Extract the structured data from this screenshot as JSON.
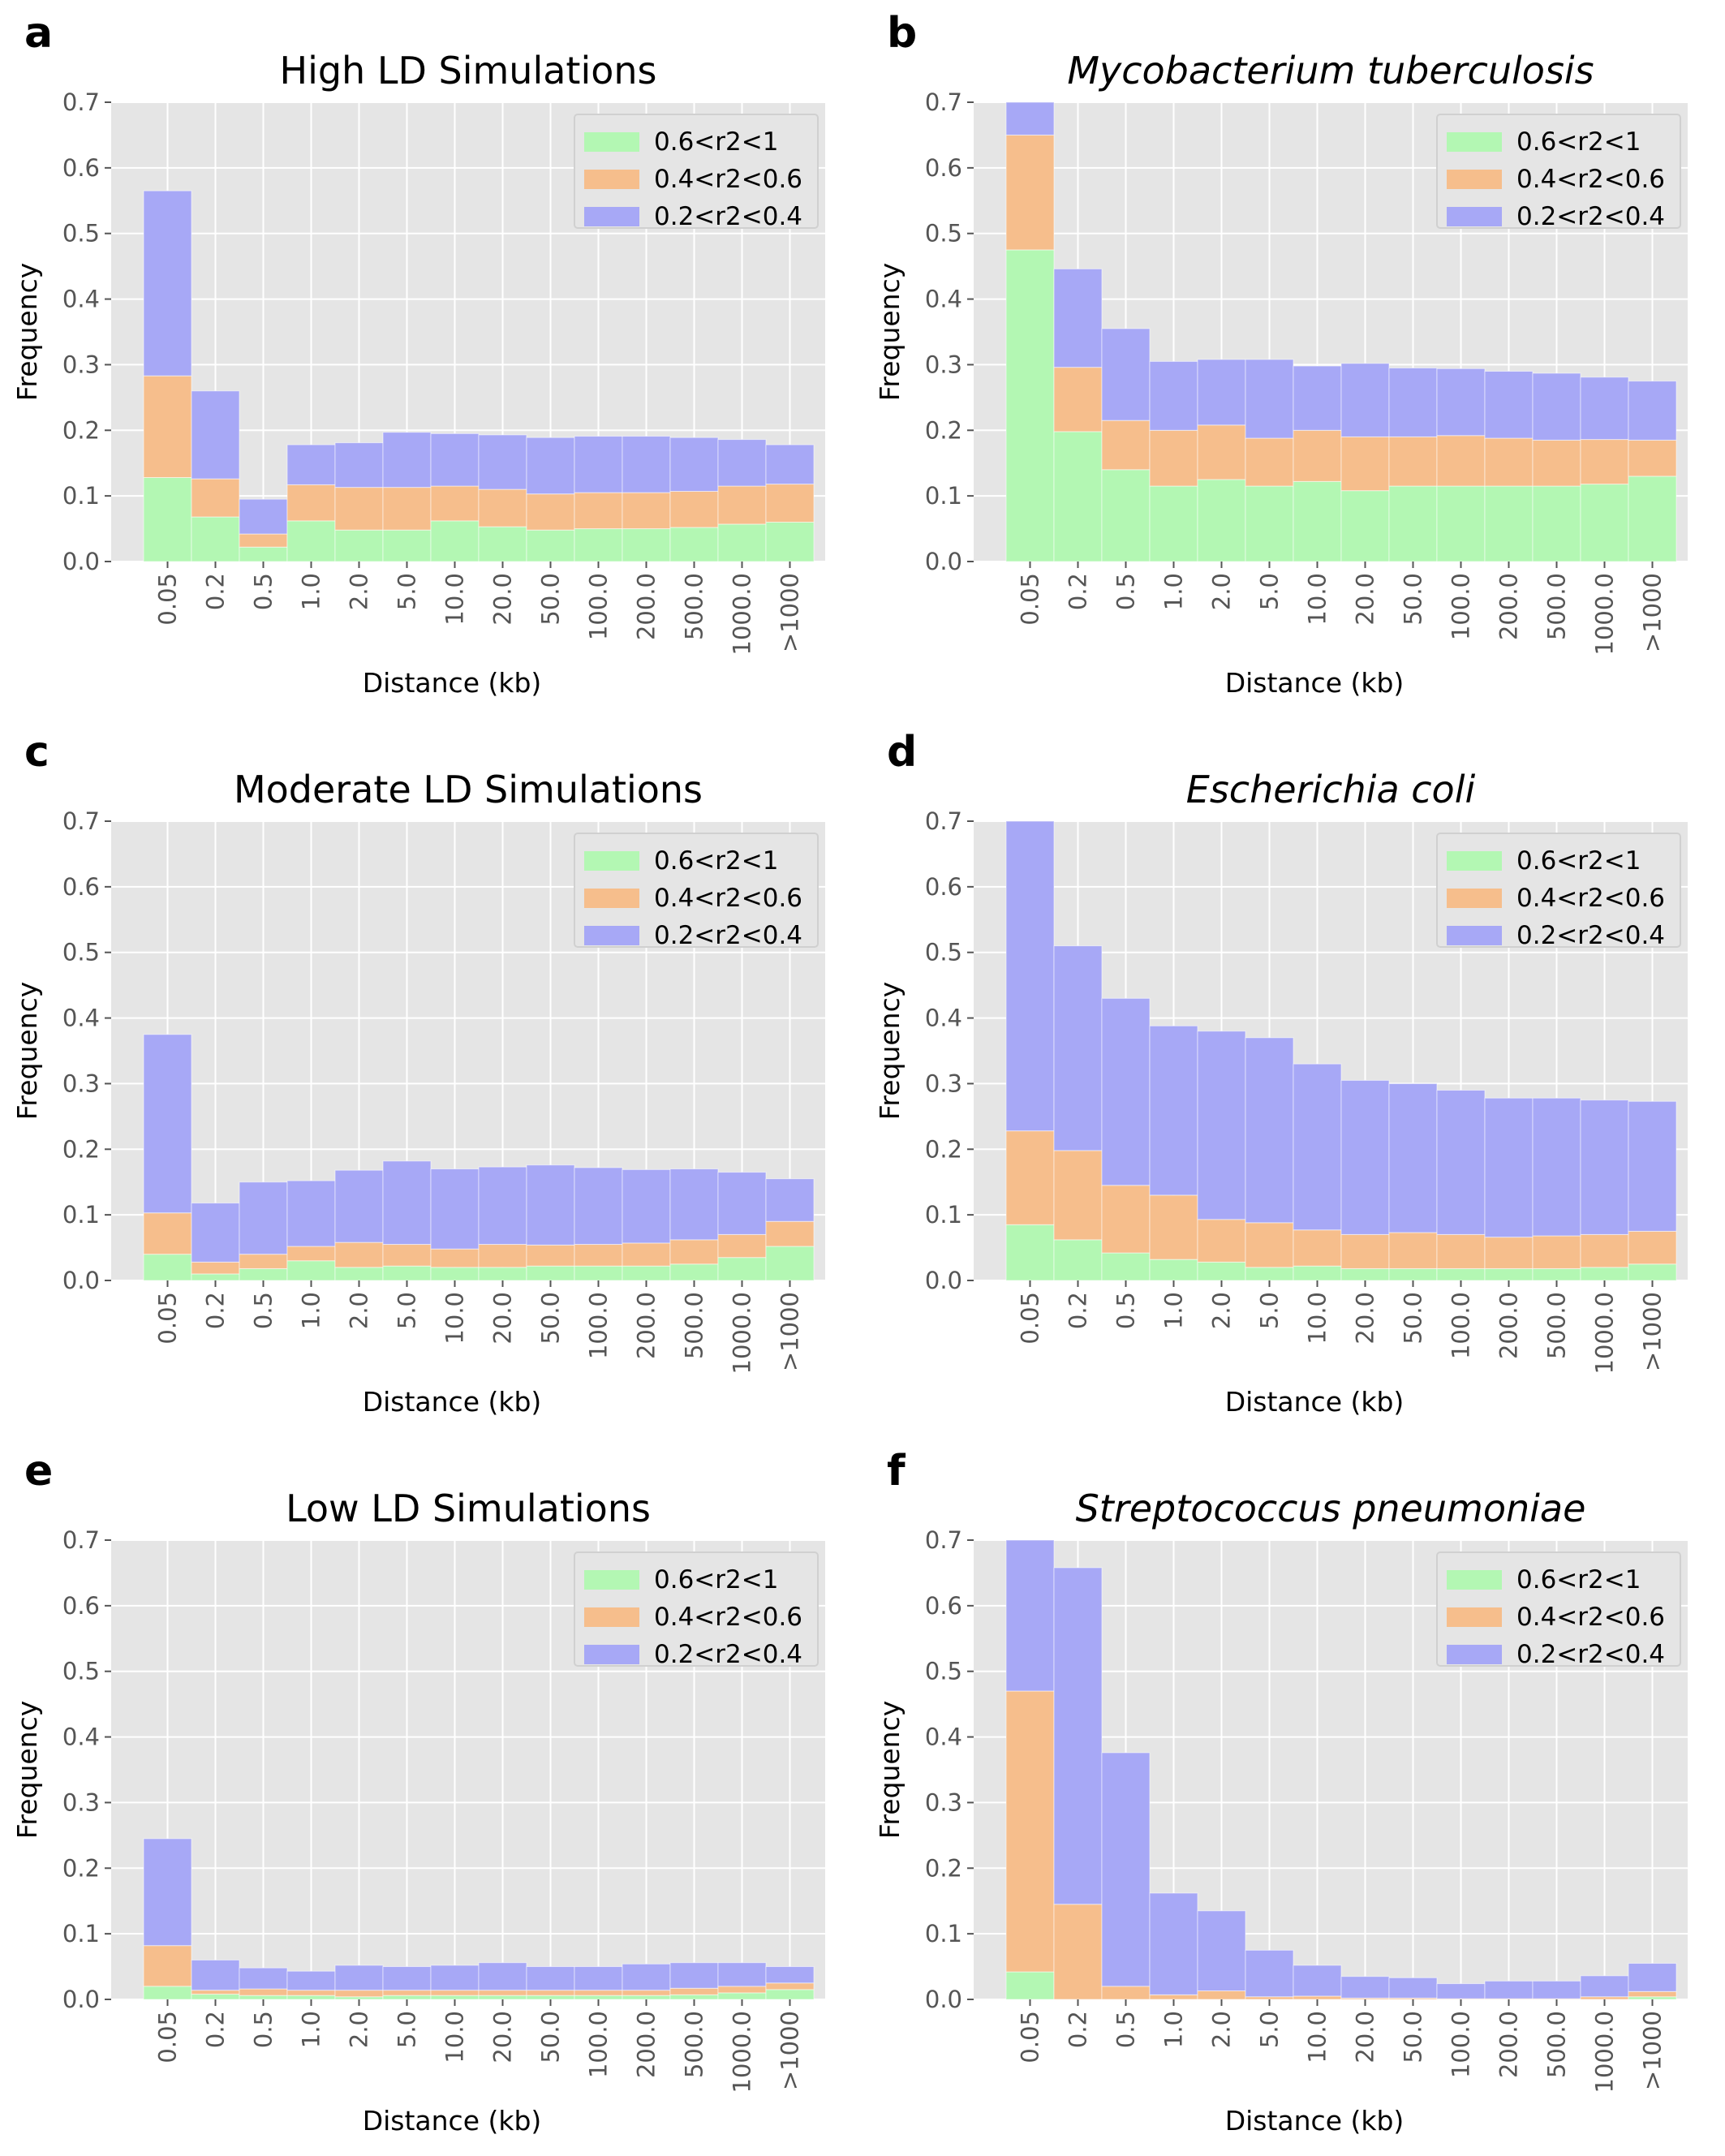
{
  "figure": {
    "panels": [
      {
        "panel_label": "a",
        "chart_data": {
          "type": "bar",
          "stacked": true,
          "title": "High LD Simulations",
          "title_italic": false,
          "xlabel": "Distance (kb)",
          "ylabel": "Frequency",
          "ylim": [
            0,
            0.7
          ],
          "yticks": [
            "0.0",
            "0.1",
            "0.2",
            "0.3",
            "0.4",
            "0.5",
            "0.6",
            "0.7"
          ],
          "grid": true,
          "legend_position": "top-right",
          "categories": [
            "0.05",
            "0.2",
            "0.5",
            "1.0",
            "2.0",
            "5.0",
            "10.0",
            "20.0",
            "50.0",
            "100.0",
            "200.0",
            "500.0",
            "1000.0",
            ">1000"
          ],
          "series": [
            {
              "name": "0.6<r2<1",
              "color": "#b3f7b3",
              "values": [
                0.128,
                0.068,
                0.022,
                0.062,
                0.048,
                0.048,
                0.062,
                0.053,
                0.048,
                0.05,
                0.05,
                0.052,
                0.057,
                0.06
              ]
            },
            {
              "name": "0.4<r2<0.6",
              "color": "#f6be8c",
              "values": [
                0.155,
                0.058,
                0.02,
                0.055,
                0.065,
                0.065,
                0.053,
                0.057,
                0.055,
                0.055,
                0.055,
                0.055,
                0.058,
                0.058
              ]
            },
            {
              "name": "0.2<r2<0.4",
              "color": "#a7a8f6",
              "values": [
                0.282,
                0.134,
                0.053,
                0.061,
                0.068,
                0.084,
                0.08,
                0.083,
                0.086,
                0.086,
                0.086,
                0.082,
                0.071,
                0.06
              ]
            }
          ]
        }
      },
      {
        "panel_label": "b",
        "chart_data": {
          "type": "bar",
          "stacked": true,
          "title": "Mycobacterium tuberculosis",
          "title_italic": true,
          "xlabel": "Distance (kb)",
          "ylabel": "Frequency",
          "ylim": [
            0,
            0.7
          ],
          "yticks": [
            "0.0",
            "0.1",
            "0.2",
            "0.3",
            "0.4",
            "0.5",
            "0.6",
            "0.7"
          ],
          "grid": true,
          "legend_position": "top-right",
          "categories": [
            "0.05",
            "0.2",
            "0.5",
            "1.0",
            "2.0",
            "5.0",
            "10.0",
            "20.0",
            "50.0",
            "100.0",
            "200.0",
            "500.0",
            "1000.0",
            ">1000"
          ],
          "series": [
            {
              "name": "0.6<r2<1",
              "color": "#b3f7b3",
              "values": [
                0.475,
                0.198,
                0.14,
                0.115,
                0.125,
                0.115,
                0.122,
                0.108,
                0.115,
                0.115,
                0.115,
                0.115,
                0.118,
                0.13
              ]
            },
            {
              "name": "0.4<r2<0.6",
              "color": "#f6be8c",
              "values": [
                0.175,
                0.098,
                0.075,
                0.085,
                0.083,
                0.073,
                0.078,
                0.082,
                0.075,
                0.077,
                0.073,
                0.07,
                0.068,
                0.055
              ]
            },
            {
              "name": "0.2<r2<0.4",
              "color": "#a7a8f6",
              "values": [
                0.06,
                0.15,
                0.14,
                0.105,
                0.1,
                0.12,
                0.098,
                0.112,
                0.105,
                0.102,
                0.102,
                0.102,
                0.095,
                0.09
              ]
            }
          ]
        }
      },
      {
        "panel_label": "c",
        "chart_data": {
          "type": "bar",
          "stacked": true,
          "title": "Moderate LD Simulations",
          "title_italic": false,
          "xlabel": "Distance (kb)",
          "ylabel": "Frequency",
          "ylim": [
            0,
            0.7
          ],
          "yticks": [
            "0.0",
            "0.1",
            "0.2",
            "0.3",
            "0.4",
            "0.5",
            "0.6",
            "0.7"
          ],
          "grid": true,
          "legend_position": "top-right",
          "categories": [
            "0.05",
            "0.2",
            "0.5",
            "1.0",
            "2.0",
            "5.0",
            "10.0",
            "20.0",
            "50.0",
            "100.0",
            "200.0",
            "500.0",
            "1000.0",
            ">1000"
          ],
          "series": [
            {
              "name": "0.6<r2<1",
              "color": "#b3f7b3",
              "values": [
                0.04,
                0.01,
                0.018,
                0.03,
                0.02,
                0.022,
                0.02,
                0.02,
                0.022,
                0.022,
                0.022,
                0.025,
                0.035,
                0.052
              ]
            },
            {
              "name": "0.4<r2<0.6",
              "color": "#f6be8c",
              "values": [
                0.063,
                0.018,
                0.022,
                0.022,
                0.038,
                0.033,
                0.028,
                0.035,
                0.032,
                0.033,
                0.035,
                0.037,
                0.035,
                0.038
              ]
            },
            {
              "name": "0.2<r2<0.4",
              "color": "#a7a8f6",
              "values": [
                0.272,
                0.09,
                0.11,
                0.1,
                0.11,
                0.127,
                0.122,
                0.118,
                0.122,
                0.117,
                0.112,
                0.108,
                0.095,
                0.065
              ]
            }
          ]
        }
      },
      {
        "panel_label": "d",
        "chart_data": {
          "type": "bar",
          "stacked": true,
          "title": "Escherichia coli",
          "title_italic": true,
          "xlabel": "Distance (kb)",
          "ylabel": "Frequency",
          "ylim": [
            0,
            0.7
          ],
          "yticks": [
            "0.0",
            "0.1",
            "0.2",
            "0.3",
            "0.4",
            "0.5",
            "0.6",
            "0.7"
          ],
          "grid": true,
          "legend_position": "top-right",
          "categories": [
            "0.05",
            "0.2",
            "0.5",
            "1.0",
            "2.0",
            "5.0",
            "10.0",
            "20.0",
            "50.0",
            "100.0",
            "200.0",
            "500.0",
            "1000.0",
            ">1000"
          ],
          "series": [
            {
              "name": "0.6<r2<1",
              "color": "#b3f7b3",
              "values": [
                0.085,
                0.062,
                0.042,
                0.032,
                0.028,
                0.02,
                0.022,
                0.018,
                0.018,
                0.018,
                0.018,
                0.018,
                0.02,
                0.025
              ]
            },
            {
              "name": "0.4<r2<0.6",
              "color": "#f6be8c",
              "values": [
                0.143,
                0.136,
                0.103,
                0.098,
                0.065,
                0.068,
                0.055,
                0.052,
                0.055,
                0.052,
                0.048,
                0.05,
                0.05,
                0.05
              ]
            },
            {
              "name": "0.2<r2<0.4",
              "color": "#a7a8f6",
              "values": [
                0.472,
                0.312,
                0.285,
                0.258,
                0.287,
                0.282,
                0.253,
                0.235,
                0.227,
                0.22,
                0.212,
                0.21,
                0.205,
                0.198
              ]
            }
          ]
        }
      },
      {
        "panel_label": "e",
        "chart_data": {
          "type": "bar",
          "stacked": true,
          "title": "Low LD Simulations",
          "title_italic": false,
          "xlabel": "Distance (kb)",
          "ylabel": "Frequency",
          "ylim": [
            0,
            0.7
          ],
          "yticks": [
            "0.0",
            "0.1",
            "0.2",
            "0.3",
            "0.4",
            "0.5",
            "0.6",
            "0.7"
          ],
          "grid": true,
          "legend_position": "top-right",
          "categories": [
            "0.05",
            "0.2",
            "0.5",
            "1.0",
            "2.0",
            "5.0",
            "10.0",
            "20.0",
            "50.0",
            "100.0",
            "200.0",
            "500.0",
            "1000.0",
            ">1000"
          ],
          "series": [
            {
              "name": "0.6<r2<1",
              "color": "#b3f7b3",
              "values": [
                0.02,
                0.008,
                0.006,
                0.006,
                0.004,
                0.006,
                0.006,
                0.006,
                0.006,
                0.006,
                0.006,
                0.007,
                0.01,
                0.015
              ]
            },
            {
              "name": "0.4<r2<0.6",
              "color": "#f6be8c",
              "values": [
                0.062,
                0.006,
                0.01,
                0.008,
                0.01,
                0.008,
                0.008,
                0.008,
                0.008,
                0.008,
                0.008,
                0.01,
                0.01,
                0.01
              ]
            },
            {
              "name": "0.2<r2<0.4",
              "color": "#a7a8f6",
              "values": [
                0.163,
                0.046,
                0.032,
                0.029,
                0.038,
                0.036,
                0.038,
                0.042,
                0.036,
                0.036,
                0.04,
                0.039,
                0.036,
                0.025
              ]
            }
          ]
        }
      },
      {
        "panel_label": "f",
        "chart_data": {
          "type": "bar",
          "stacked": true,
          "title": "Streptococcus pneumoniae",
          "title_italic": true,
          "xlabel": "Distance (kb)",
          "ylabel": "Frequency",
          "ylim": [
            0,
            0.7
          ],
          "yticks": [
            "0.0",
            "0.1",
            "0.2",
            "0.3",
            "0.4",
            "0.5",
            "0.6",
            "0.7"
          ],
          "grid": true,
          "legend_position": "top-right",
          "categories": [
            "0.05",
            "0.2",
            "0.5",
            "1.0",
            "2.0",
            "5.0",
            "10.0",
            "20.0",
            "50.0",
            "100.0",
            "200.0",
            "500.0",
            "1000.0",
            ">1000"
          ],
          "series": [
            {
              "name": "0.6<r2<1",
              "color": "#b3f7b3",
              "values": [
                0.042,
                0.0,
                0.0,
                0.0,
                0.0,
                0.0,
                0.0,
                0.0,
                0.0,
                0.0,
                0.0,
                0.0,
                0.0,
                0.004
              ]
            },
            {
              "name": "0.4<r2<0.6",
              "color": "#f6be8c",
              "values": [
                0.428,
                0.145,
                0.02,
                0.007,
                0.013,
                0.004,
                0.005,
                0.002,
                0.002,
                0.001,
                0.001,
                0.001,
                0.004,
                0.008
              ]
            },
            {
              "name": "0.2<r2<0.4",
              "color": "#a7a8f6",
              "values": [
                0.23,
                0.513,
                0.356,
                0.155,
                0.122,
                0.071,
                0.047,
                0.033,
                0.031,
                0.023,
                0.027,
                0.027,
                0.032,
                0.043
              ]
            }
          ]
        }
      }
    ]
  }
}
